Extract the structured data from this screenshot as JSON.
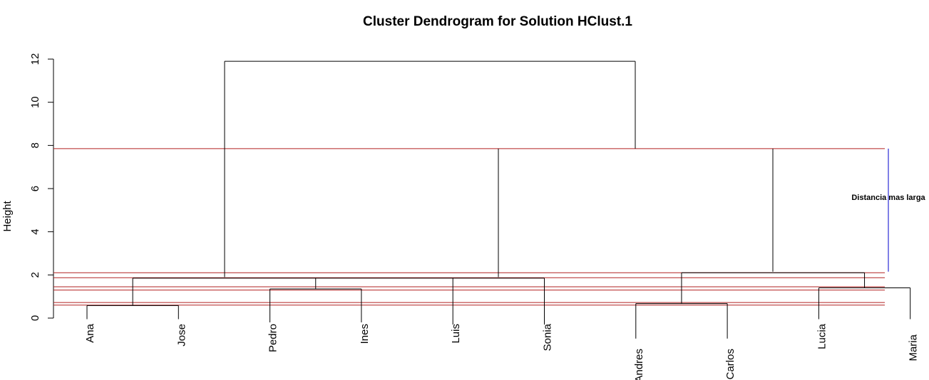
{
  "chart_data": {
    "type": "dendrogram",
    "title": "Cluster Dendrogram for Solution HClust.1",
    "ylabel": "Height",
    "ylim": [
      0,
      12
    ],
    "y_ticks": [
      0,
      2,
      4,
      6,
      8,
      10,
      12
    ],
    "leaves": [
      "Ana",
      "Jose",
      "Pedro",
      "Ines",
      "Luis",
      "Sonia",
      "Andres",
      "Carlos",
      "Lucia",
      "Maria"
    ],
    "merges": [
      {
        "left": "Ana",
        "right": "Jose",
        "height": 0.58,
        "label_height": -0.05
      },
      {
        "left": "Andres",
        "right": "Carlos",
        "height": 0.67,
        "label_height": -0.95
      },
      {
        "left": "Pedro",
        "right": "Ines",
        "height": 1.35,
        "label_height": -0.2
      },
      {
        "left": "Lucia",
        "right": "Maria",
        "height": 1.4,
        "label_height": -0.05
      },
      {
        "left": "Ana+Jose",
        "right": "Pedro+Ines+Luis+Sonia",
        "height": 1.85,
        "label_height": -0.3
      },
      {
        "left": "Andres+Carlos",
        "right": "Lucia+Maria",
        "height": 2.1,
        "label_height": -0.3
      },
      {
        "left": "Ana..Sonia",
        "right": "Andres..Maria",
        "height": 11.9
      }
    ],
    "cut_lines": [
      0.6,
      0.72,
      1.3,
      1.45,
      1.87,
      2.1,
      7.85
    ],
    "cut_line_color": "#b22222",
    "annotation": {
      "text": "Distancia mas larga",
      "y_from": 2.15,
      "y_to": 7.85,
      "color": "#0000cc"
    }
  }
}
